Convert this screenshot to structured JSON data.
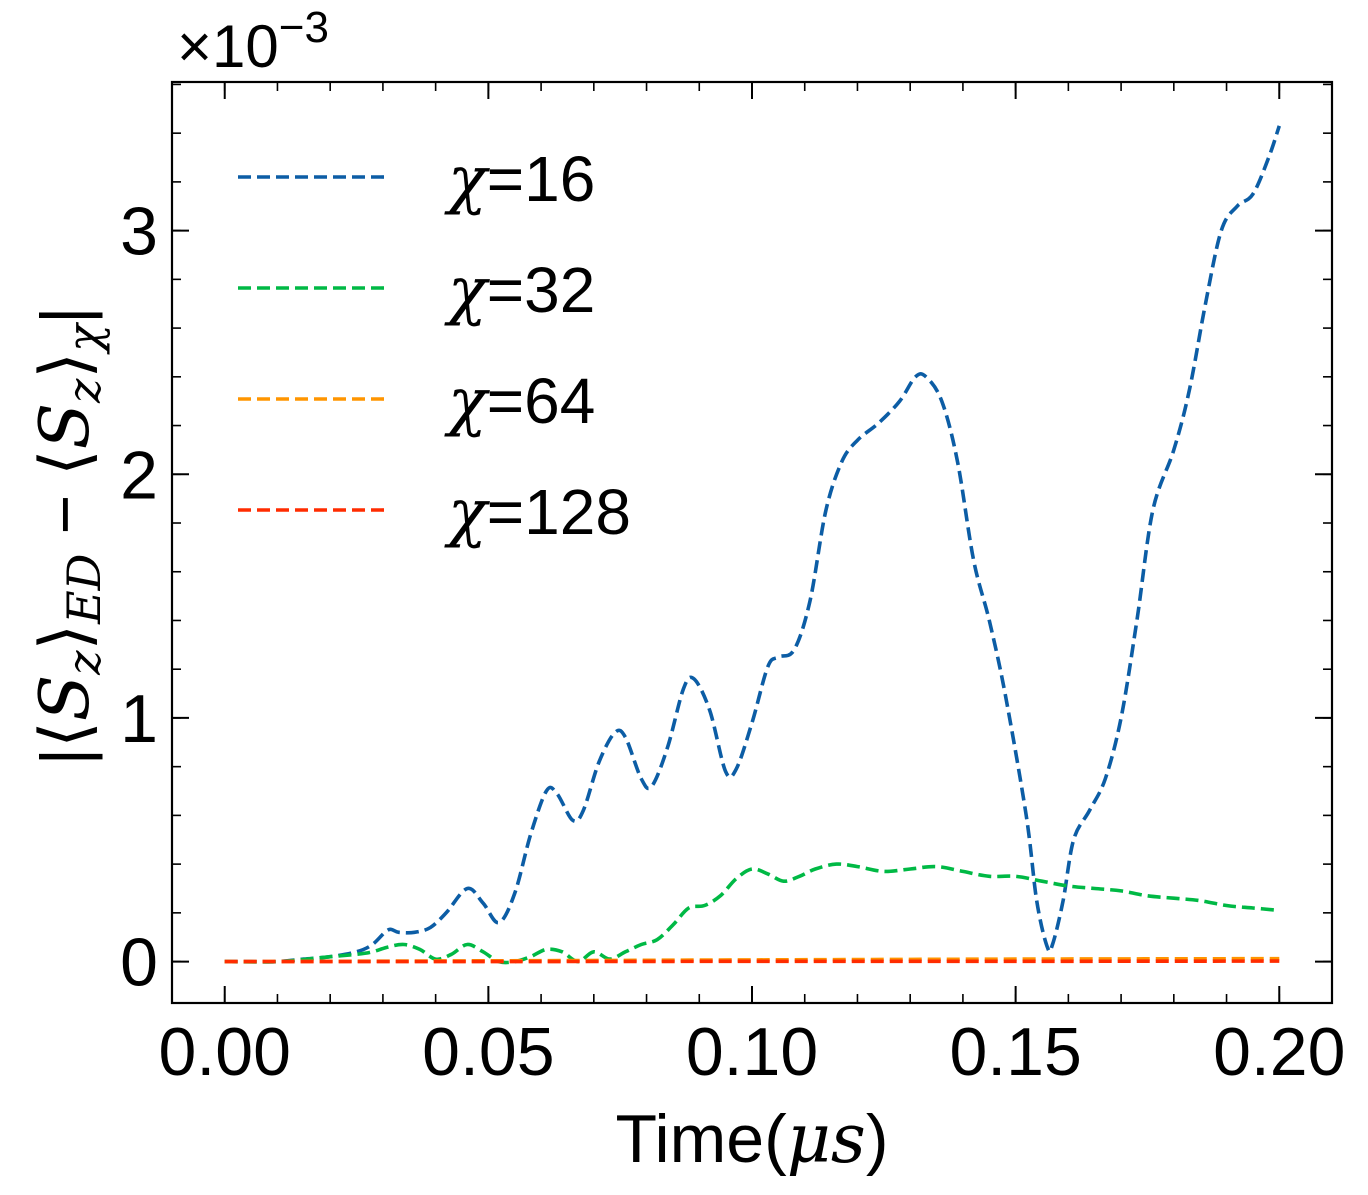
{
  "chart_data": {
    "type": "line",
    "xlabel_text": "Time(",
    "xlabel_math": "μs",
    "xlabel_close": ")",
    "ylabel": "|⟨S_z⟩_ED − ⟨S_z⟩_χ|",
    "ylabel_parts": {
      "bar_open": "|",
      "lang1": "⟨",
      "S1": "S",
      "z1": "z",
      "rang1": "⟩",
      "ED": "ED",
      "minus": " − ",
      "lang2": "⟨",
      "S2": "S",
      "z2": "z",
      "rang2": "⟩",
      "chi": "χ",
      "bar_close": "|"
    },
    "offset_base": "×10",
    "offset_exp": "−3",
    "xlim": [
      -0.01,
      0.21
    ],
    "ylim": [
      -0.00017,
      0.00361
    ],
    "xticks": [
      0.0,
      0.05,
      0.1,
      0.15,
      0.2
    ],
    "xtick_labels": [
      "0.00",
      "0.05",
      "0.10",
      "0.15",
      "0.20"
    ],
    "yticks": [
      0,
      0.001,
      0.002,
      0.003
    ],
    "ytick_labels": [
      "0",
      "1",
      "2",
      "3"
    ],
    "legend_position": "upper-left",
    "series": [
      {
        "name": "χ=16",
        "label_var": "χ",
        "label_value": "=16",
        "color": "#0C5DA5",
        "dash": "dashed",
        "x": [
          0.0,
          0.005,
          0.01,
          0.015,
          0.02,
          0.025,
          0.028,
          0.031,
          0.033,
          0.036,
          0.039,
          0.042,
          0.046,
          0.049,
          0.052,
          0.055,
          0.058,
          0.061,
          0.063,
          0.066,
          0.068,
          0.071,
          0.074,
          0.076,
          0.079,
          0.081,
          0.084,
          0.087,
          0.089,
          0.092,
          0.095,
          0.097,
          0.1,
          0.103,
          0.105,
          0.108,
          0.111,
          0.114,
          0.117,
          0.12,
          0.124,
          0.128,
          0.131,
          0.133,
          0.136,
          0.139,
          0.142,
          0.145,
          0.148,
          0.152,
          0.154,
          0.156,
          0.157,
          0.159,
          0.161,
          0.164,
          0.167,
          0.17,
          0.173,
          0.176,
          0.18,
          0.183,
          0.186,
          0.189,
          0.192,
          0.195,
          0.198,
          0.2
        ],
        "y": [
          0.0,
          0.0,
          0.0,
          1e-05,
          2e-05,
          4e-05,
          7e-05,
          0.00013,
          0.00012,
          0.00012,
          0.00014,
          0.0002,
          0.0003,
          0.00024,
          0.00016,
          0.00028,
          0.00052,
          0.0007,
          0.00069,
          0.00058,
          0.00062,
          0.00082,
          0.00094,
          0.00092,
          0.00075,
          0.00072,
          0.00088,
          0.00112,
          0.00116,
          0.00103,
          0.00078,
          0.00079,
          0.00098,
          0.00121,
          0.00125,
          0.00128,
          0.00148,
          0.00185,
          0.00205,
          0.00214,
          0.00221,
          0.0023,
          0.0024,
          0.0024,
          0.0023,
          0.00205,
          0.00165,
          0.0014,
          0.0011,
          0.0006,
          0.00025,
          6e-05,
          7e-05,
          0.00025,
          0.0005,
          0.00062,
          0.00075,
          0.001,
          0.0014,
          0.00185,
          0.0021,
          0.00235,
          0.0027,
          0.003,
          0.0031,
          0.00315,
          0.0033,
          0.00343
        ]
      },
      {
        "name": "χ=32",
        "label_var": "χ",
        "label_value": "=32",
        "color": "#00B945",
        "dash": "dashed",
        "x": [
          0.0,
          0.01,
          0.02,
          0.025,
          0.028,
          0.031,
          0.034,
          0.037,
          0.04,
          0.043,
          0.046,
          0.049,
          0.052,
          0.055,
          0.058,
          0.061,
          0.064,
          0.067,
          0.07,
          0.073,
          0.076,
          0.079,
          0.082,
          0.085,
          0.088,
          0.091,
          0.094,
          0.097,
          0.1,
          0.103,
          0.106,
          0.109,
          0.112,
          0.116,
          0.12,
          0.125,
          0.13,
          0.135,
          0.14,
          0.145,
          0.15,
          0.155,
          0.16,
          0.165,
          0.17,
          0.175,
          0.18,
          0.185,
          0.19,
          0.195,
          0.2
        ],
        "y": [
          0.0,
          0.0,
          2e-05,
          3e-05,
          4e-05,
          6e-05,
          7e-05,
          5e-05,
          1e-05,
          3e-05,
          7e-05,
          4e-05,
          0.0,
          0.0,
          2e-05,
          5e-05,
          4e-05,
          0.0,
          4e-05,
          1e-05,
          4e-05,
          7e-05,
          9e-05,
          0.00015,
          0.00022,
          0.00023,
          0.00027,
          0.00034,
          0.00038,
          0.00036,
          0.00033,
          0.00035,
          0.00038,
          0.0004,
          0.00039,
          0.00037,
          0.00038,
          0.00039,
          0.00037,
          0.00035,
          0.00035,
          0.00033,
          0.00031,
          0.0003,
          0.00029,
          0.00027,
          0.00026,
          0.00025,
          0.00023,
          0.00022,
          0.00021
        ]
      },
      {
        "name": "χ=64",
        "label_var": "χ",
        "label_value": "=64",
        "color": "#FF9500",
        "dash": "dashed",
        "x": [
          0.0,
          0.05,
          0.1,
          0.15,
          0.2
        ],
        "y": [
          0.0,
          3e-06,
          7e-06,
          1e-05,
          1.2e-05
        ]
      },
      {
        "name": "χ=128",
        "label_var": "χ",
        "label_value": "=128",
        "color": "#FF2C00",
        "dash": "dashed",
        "x": [
          0.0,
          0.05,
          0.1,
          0.15,
          0.2
        ],
        "y": [
          0.0,
          0.0,
          1e-06,
          1e-06,
          2e-06
        ]
      }
    ]
  }
}
